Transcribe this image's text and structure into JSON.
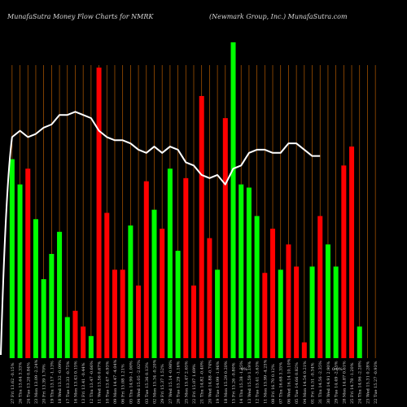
{
  "header": {
    "left": "MunafaSutra  Money Flow  Charts for NMRK",
    "right": "(Newmark Group,  Inc.) MunafaSutra.com"
  },
  "colors": {
    "background": "#000000",
    "grid": "#b35a00",
    "up": "#00ff00",
    "down": "#ff0000",
    "line": "#ffffff",
    "text": "#d8d8d8"
  },
  "chart_data": {
    "type": "bar",
    "title": "",
    "xlabel": "",
    "ylabel": "",
    "ylim": [
      0,
      100
    ],
    "grid": true,
    "categories": [
      "Fri 27 Dec 2024",
      "Thu 26 Dec 2024",
      "Tue 24 Dec 2024",
      "Mon 23 Dec 2024",
      "Fri 20 Dec 2024",
      "Thu 19 Dec 2024",
      "Wed 18 Dec 2024",
      "Tue 17 Dec 2024",
      "Mon 16 Dec 2024",
      "Fri 13 Dec 2024",
      "Thu 12 Dec 2024",
      "Wed 11 Dec 2024",
      "Tue 10 Dec 2024",
      "Mon 09 Dec 2024",
      "Fri 06 Dec 2024",
      "Thu 05 Dec 2024",
      "Wed 04 Dec 2024",
      "Tue 03 Dec 2024",
      "Mon 02 Dec 2024",
      "Fri 29 Nov 2024",
      "Wed 27 Nov 2024",
      "Tue 26 Nov 2024",
      "Mon 25 Nov 2024",
      "Fri 22 Nov 2024",
      "Thu 21 Nov 2024",
      "Wed 20 Nov 2024",
      "Tue 19 Nov 2024",
      "Mon 18 Nov 2024",
      "Fri 15 Nov 2024",
      "Thu 14 Nov 2024",
      "Wed 13 Nov 2024",
      "Tue 12 Nov 2024",
      "Mon 11 Nov 2024",
      "Fri 08 Nov 2024",
      "Thu 07 Nov 2024",
      "Wed 06 Nov 2024",
      "Tue 05 Nov 2024",
      "Mon 04 Nov 2024",
      "Fri 01 Nov 2024",
      "Thu 31 Oct 2024",
      "Wed 30 Oct 2024",
      "Tue 29 Oct 2024",
      "Mon 28 Oct 2024",
      "Fri 25 Oct 2024",
      "Thu 24 Oct 2024",
      "Wed 23 Oct 2024",
      "Tue 22 Oct 2024"
    ],
    "tick_labels": [
      "27 Fri 13.62 -0.15%",
      "26 Thu 13.64 3.33%",
      "24 Tue 13.20 0.84%",
      "23 Mon 13.09 -2.24%",
      "20 Fri 13.39 1.70%",
      "19 Thu 13.17 -1.13%",
      "18 Wed 13.32 -0.09%",
      "17 Tue 13.33 -0.75%",
      "16 Mon 13.43 0.15%",
      "13 Fri 13.41 -0.44%",
      "12 Thu 13.47 -0.66%",
      "11 Wed 13.56 0.67%",
      "10 Tue 13.47 -6.93%",
      "09 Mon 14.47 -4.04%",
      "06 Fri 15.08 1.21%",
      "05 Thu 14.90 -1.00%",
      "04 Wed 15.05 -2.02%",
      "03 Tue 15.36 0.13%",
      "02 Mon 15.34 -0.20%",
      "29 Fri 15.37 1.52%",
      "27 Wed 15.14 -0.98%",
      "26 Tue 15.29 -1.16%",
      "25 Mon 15.47 2.65%",
      "22 Fri 15.07 1.69%",
      "21 Thu 14.82 -0.40%",
      "20 Wed 14.88 -0.74%",
      "19 Tue 14.99 -1.96%",
      "18 Mon 15.29 0.20%",
      "15 Fri 15.26 -0.80%",
      "14 Thu 15.38 -1.35%",
      "13 Wed 15.59 1.19%",
      "12 Tue 15.41 -3.63%",
      "11 Mon 15.99 -4.25%",
      "08 Fri 16.70 0.12%",
      "07 Thu 16.68 3.35%",
      "06 Wed 16.14 10.10%",
      "05 Tue 14.66 0.82%",
      "04 Mon 14.54 0.21%",
      "01 Fri 14.51 -0.34%",
      "31 Thu 14.56 -2.35%",
      "30 Wed 14.91 2.90%",
      "29 Tue 14.49 -2.55%",
      "28 Mon 14.87 0.61%",
      "25 Fri 14.78 -1.20%",
      "24 Thu 14.96 -2.28%",
      "23 Wed 15.31 0.28%",
      "22 Tue 15.27 -0.93%"
    ],
    "bars": {
      "values": [
        63,
        55,
        60,
        44,
        25,
        33,
        40,
        13,
        15,
        10,
        7,
        92,
        46,
        28,
        28,
        42,
        23,
        56,
        47,
        41,
        60,
        34,
        57,
        23,
        83,
        38,
        28,
        76,
        100,
        55,
        54,
        45,
        27,
        41,
        28,
        36,
        29,
        5,
        29,
        45,
        36,
        29,
        61,
        67,
        10,
        0,
        0
      ],
      "colors": [
        "up",
        "up",
        "down",
        "up",
        "up",
        "up",
        "up",
        "up",
        "down",
        "down",
        "up",
        "down",
        "down",
        "down",
        "down",
        "up",
        "down",
        "down",
        "up",
        "down",
        "up",
        "up",
        "down",
        "down",
        "down",
        "down",
        "up",
        "down",
        "up",
        "up",
        "up",
        "up",
        "down",
        "down",
        "up",
        "down",
        "down",
        "down",
        "up",
        "down",
        "up",
        "up",
        "down",
        "down",
        "up",
        "up",
        "up"
      ]
    },
    "line": {
      "name": "",
      "values": [
        70,
        72,
        70,
        71,
        73,
        74,
        77,
        77,
        78,
        77,
        76,
        72,
        70,
        69,
        69,
        68,
        66,
        65,
        67,
        65,
        67,
        66,
        62,
        61,
        58,
        57,
        58,
        55,
        60,
        61,
        65,
        66,
        66,
        65,
        65,
        68,
        68,
        66,
        64,
        64
      ]
    },
    "extra_labels": [
      "0%",
      "0.0%"
    ]
  }
}
